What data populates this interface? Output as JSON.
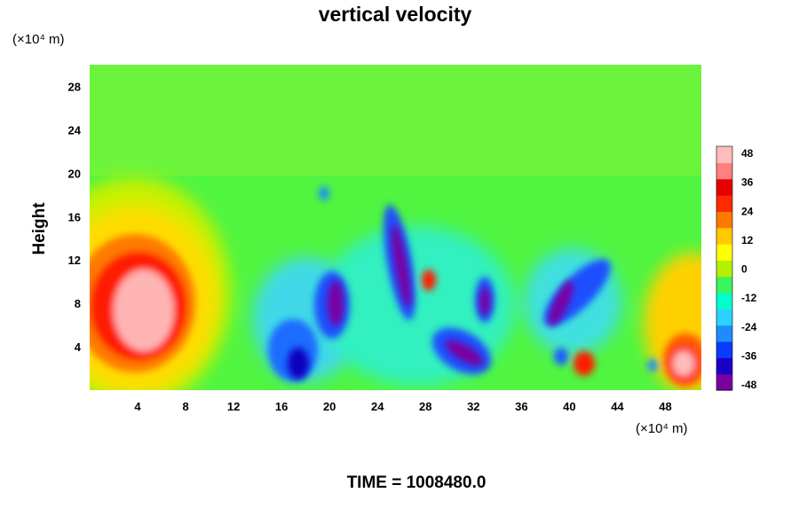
{
  "chart_data": {
    "type": "heatmap",
    "title": "vertical velocity",
    "ylabel": "Height",
    "y_unit": "(×10⁴ m)",
    "x_unit": "(×10⁴ m)",
    "footer": "TIME = 1008480.0",
    "x_ticks": [
      "4",
      "8",
      "12",
      "16",
      "20",
      "24",
      "28",
      "32",
      "36",
      "40",
      "44",
      "48"
    ],
    "y_ticks": [
      "4",
      "8",
      "12",
      "16",
      "20",
      "24",
      "28"
    ],
    "xlim": [
      0,
      51
    ],
    "ylim": [
      0,
      30
    ],
    "colorbar": {
      "ticks": [
        "48",
        "36",
        "24",
        "12",
        "0",
        "-12",
        "-24",
        "-36",
        "-48"
      ],
      "range": [
        -48,
        48
      ],
      "colors": [
        "#7a00a0",
        "#1a00c8",
        "#0a3cff",
        "#1e8cff",
        "#2ad2ff",
        "#00ffcf",
        "#3cf55a",
        "#b4f000",
        "#ffff00",
        "#ffc800",
        "#ff7800",
        "#ff2a00",
        "#e60000",
        "#ff8080",
        "#ffbcbc"
      ]
    },
    "features": [
      {
        "x": 5.5,
        "y": 7.5,
        "value": 48
      },
      {
        "x": 49.8,
        "y": 2.5,
        "value": 48
      },
      {
        "x": 41.5,
        "y": 2.5,
        "value": 40
      },
      {
        "x": 28.5,
        "y": 10,
        "value": 40
      },
      {
        "x": 21,
        "y": 8,
        "value": -48
      },
      {
        "x": 26,
        "y": 12,
        "value": -48
      },
      {
        "x": 31.5,
        "y": 4,
        "value": -48
      },
      {
        "x": 33,
        "y": 8,
        "value": -44
      },
      {
        "x": 39.5,
        "y": 8,
        "value": -44
      },
      {
        "x": 17.5,
        "y": 3,
        "value": -40
      }
    ]
  }
}
